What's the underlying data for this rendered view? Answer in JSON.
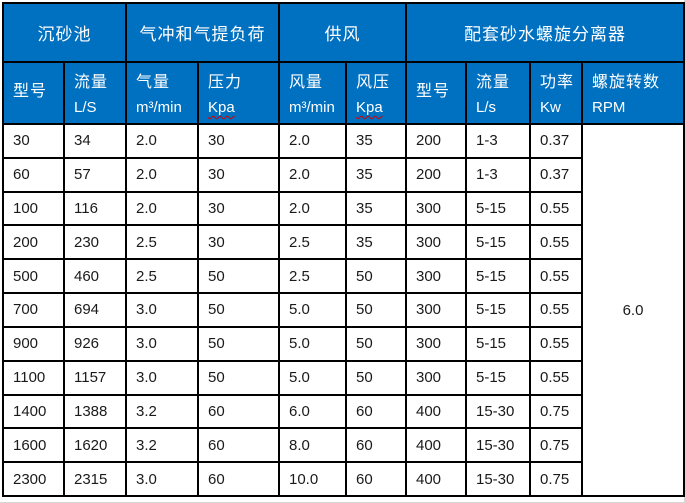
{
  "colors": {
    "header_background": "#0070c0",
    "header_text": "#ffffff",
    "body_text": "#1a1a1a",
    "border": "#000000",
    "spellcheck_underline": "#d40000"
  },
  "table": {
    "column_groups": [
      {
        "label": "沉砂池",
        "span": 2
      },
      {
        "label": "气冲和气提负荷",
        "span": 2
      },
      {
        "label": "供风",
        "span": 2
      },
      {
        "label": "配套砂水螺旋分离器",
        "span": 4
      }
    ],
    "subheaders": [
      {
        "line1": "型号",
        "line2": ""
      },
      {
        "line1": "流量",
        "line2": "L/S"
      },
      {
        "line1": "气量",
        "line2": "m³/min"
      },
      {
        "line1": "压力",
        "line2": "Kpa",
        "spellcheck": true
      },
      {
        "line1": "风量",
        "line2": "m³/min"
      },
      {
        "line1": "风压",
        "line2": "Kpa",
        "spellcheck": true
      },
      {
        "line1": "型号",
        "line2": ""
      },
      {
        "line1": "流量",
        "line2": "L/s"
      },
      {
        "line1": "功率",
        "line2": "Kw"
      },
      {
        "line1": "螺旋转数",
        "line2": "RPM"
      }
    ],
    "rows": [
      [
        "30",
        "34",
        "2.0",
        "30",
        "2.0",
        "35",
        "200",
        "1-3",
        "0.37"
      ],
      [
        "60",
        "57",
        "2.0",
        "30",
        "2.0",
        "35",
        "200",
        "1-3",
        "0.37"
      ],
      [
        "100",
        "116",
        "2.0",
        "30",
        "2.0",
        "35",
        "300",
        "5-15",
        "0.55"
      ],
      [
        "200",
        "230",
        "2.5",
        "30",
        "2.5",
        "35",
        "300",
        "5-15",
        "0.55"
      ],
      [
        "500",
        "460",
        "2.5",
        "50",
        "2.5",
        "50",
        "300",
        "5-15",
        "0.55"
      ],
      [
        "700",
        "694",
        "3.0",
        "50",
        "5.0",
        "50",
        "300",
        "5-15",
        "0.55"
      ],
      [
        "900",
        "926",
        "3.0",
        "50",
        "5.0",
        "50",
        "300",
        "5-15",
        "0.55"
      ],
      [
        "1100",
        "1157",
        "3.0",
        "50",
        "5.0",
        "50",
        "300",
        "5-15",
        "0.55"
      ],
      [
        "1400",
        "1388",
        "3.2",
        "60",
        "6.0",
        "60",
        "400",
        "15-30",
        "0.75"
      ],
      [
        "1600",
        "1620",
        "3.2",
        "60",
        "8.0",
        "60",
        "400",
        "15-30",
        "0.75"
      ],
      [
        "2300",
        "2315",
        "3.0",
        "60",
        "10.0",
        "60",
        "400",
        "15-30",
        "0.75"
      ]
    ],
    "rpm_merged_value": "6.0"
  }
}
